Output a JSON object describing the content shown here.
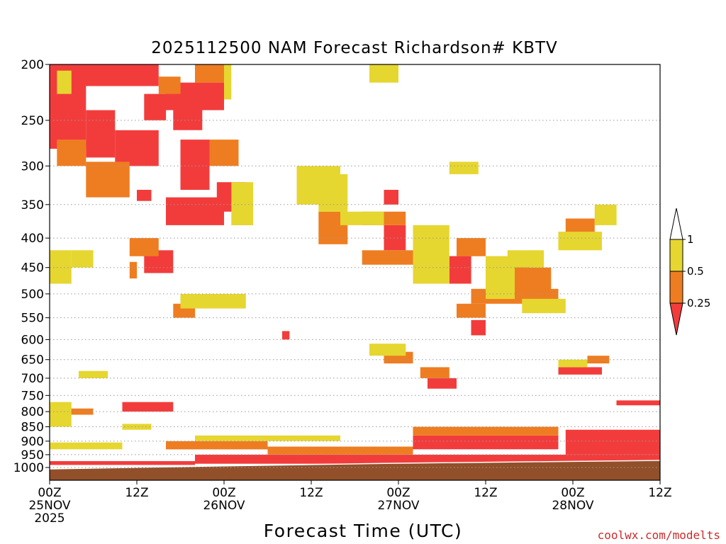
{
  "chart_data": {
    "type": "heatmap",
    "title": "2025112500 NAM Forecast Richardson# KBTV",
    "xlabel": "Forecast Time (UTC)",
    "ylabel": "",
    "y_axis": {
      "scale": "log-pressure",
      "range_hPa": [
        200,
        1000
      ],
      "ticks": [
        "200",
        "250",
        "300",
        "350",
        "400",
        "450",
        "500",
        "550",
        "600",
        "650",
        "700",
        "750",
        "800",
        "850",
        "900",
        "950",
        "1000"
      ],
      "grid": true
    },
    "x_axis": {
      "range_hours": [
        0,
        84
      ],
      "ticks": [
        {
          "hour": 0,
          "line1": "00Z",
          "line2": "25NOV",
          "line3": "2025"
        },
        {
          "hour": 12,
          "line1": "12Z",
          "line2": "",
          "line3": ""
        },
        {
          "hour": 24,
          "line1": "00Z",
          "line2": "26NOV",
          "line3": ""
        },
        {
          "hour": 36,
          "line1": "12Z",
          "line2": "",
          "line3": ""
        },
        {
          "hour": 48,
          "line1": "00Z",
          "line2": "27NOV",
          "line3": ""
        },
        {
          "hour": 60,
          "line1": "12Z",
          "line2": "",
          "line3": ""
        },
        {
          "hour": 72,
          "line1": "00Z",
          "line2": "28NOV",
          "line3": ""
        },
        {
          "hour": 84,
          "line1": "12Z",
          "line2": "",
          "line3": ""
        }
      ]
    },
    "colorbar": {
      "levels": [
        "1",
        "0.5",
        "0.25"
      ],
      "colors": {
        "lt_0_25": "#f23c3c",
        "0_25_to_0_5": "#ee7d21",
        "0_5_to_1": "#e6d630",
        "gt_1": "#ffffff"
      },
      "ground": "#91502a"
    },
    "regions": [
      {
        "bin": "lt_0_25",
        "t": [
          0,
          15
        ],
        "p": [
          200,
          218
        ]
      },
      {
        "bin": "lt_0_25",
        "t": [
          0,
          5
        ],
        "p": [
          218,
          280
        ]
      },
      {
        "bin": "lt_0_25",
        "t": [
          5,
          9
        ],
        "p": [
          240,
          290
        ]
      },
      {
        "bin": "lt_0_25",
        "t": [
          9,
          15
        ],
        "p": [
          260,
          300
        ]
      },
      {
        "bin": "lt_0_25",
        "t": [
          13,
          16
        ],
        "p": [
          225,
          250
        ]
      },
      {
        "bin": "lt_0_25",
        "t": [
          17,
          21
        ],
        "p": [
          235,
          260
        ]
      },
      {
        "bin": "lt_0_25",
        "t": [
          16,
          24
        ],
        "p": [
          340,
          380
        ]
      },
      {
        "bin": "lt_0_25",
        "t": [
          18,
          22
        ],
        "p": [
          270,
          330
        ]
      },
      {
        "bin": "lt_0_25",
        "t": [
          12,
          14
        ],
        "p": [
          330,
          345
        ]
      },
      {
        "bin": "lt_0_25",
        "t": [
          13,
          17
        ],
        "p": [
          420,
          460
        ]
      },
      {
        "bin": "lt_0_25",
        "t": [
          16,
          24
        ],
        "p": [
          215,
          240
        ]
      },
      {
        "bin": "lt_0_25",
        "t": [
          23,
          27
        ],
        "p": [
          320,
          360
        ]
      },
      {
        "bin": "lt_0_25",
        "t": [
          46,
          49
        ],
        "p": [
          380,
          420
        ]
      },
      {
        "bin": "lt_0_25",
        "t": [
          46,
          48
        ],
        "p": [
          330,
          350
        ]
      },
      {
        "bin": "lt_0_25",
        "t": [
          61,
          66
        ],
        "p": [
          440,
          490
        ]
      },
      {
        "bin": "lt_0_25",
        "t": [
          55,
          58
        ],
        "p": [
          430,
          480
        ]
      },
      {
        "bin": "lt_0_25",
        "t": [
          58,
          60
        ],
        "p": [
          555,
          590
        ]
      },
      {
        "bin": "lt_0_25",
        "t": [
          32,
          33
        ],
        "p": [
          580,
          600
        ]
      },
      {
        "bin": "lt_0_25",
        "t": [
          46,
          48
        ],
        "p": [
          615,
          630
        ]
      },
      {
        "bin": "lt_0_25",
        "t": [
          52,
          56
        ],
        "p": [
          700,
          730
        ]
      },
      {
        "bin": "lt_0_25",
        "t": [
          70,
          76
        ],
        "p": [
          670,
          690
        ]
      },
      {
        "bin": "lt_0_25",
        "t": [
          10,
          17
        ],
        "p": [
          770,
          800
        ]
      },
      {
        "bin": "lt_0_25",
        "t": [
          78,
          84
        ],
        "p": [
          765,
          780
        ]
      },
      {
        "bin": "lt_0_25",
        "t": [
          71,
          84
        ],
        "p": [
          860,
          950
        ]
      },
      {
        "bin": "lt_0_25",
        "t": [
          50,
          70
        ],
        "p": [
          880,
          930
        ]
      },
      {
        "bin": "lt_0_25",
        "t": [
          20,
          84
        ],
        "p": [
          950,
          985
        ]
      },
      {
        "bin": "lt_0_25",
        "t": [
          0,
          20
        ],
        "p": [
          975,
          990
        ]
      },
      {
        "bin": "0_25_to_0_5",
        "t": [
          1,
          5
        ],
        "p": [
          270,
          300
        ]
      },
      {
        "bin": "0_25_to_0_5",
        "t": [
          5,
          11
        ],
        "p": [
          295,
          340
        ]
      },
      {
        "bin": "0_25_to_0_5",
        "t": [
          15,
          18
        ],
        "p": [
          210,
          225
        ]
      },
      {
        "bin": "0_25_to_0_5",
        "t": [
          20,
          24
        ],
        "p": [
          200,
          215
        ]
      },
      {
        "bin": "0_25_to_0_5",
        "t": [
          22,
          26
        ],
        "p": [
          270,
          300
        ]
      },
      {
        "bin": "0_25_to_0_5",
        "t": [
          11,
          15
        ],
        "p": [
          400,
          430
        ]
      },
      {
        "bin": "0_25_to_0_5",
        "t": [
          11,
          12
        ],
        "p": [
          440,
          470
        ]
      },
      {
        "bin": "0_25_to_0_5",
        "t": [
          37,
          41
        ],
        "p": [
          360,
          410
        ]
      },
      {
        "bin": "0_25_to_0_5",
        "t": [
          43,
          49
        ],
        "p": [
          360,
          380
        ]
      },
      {
        "bin": "0_25_to_0_5",
        "t": [
          43,
          50
        ],
        "p": [
          420,
          445
        ]
      },
      {
        "bin": "0_25_to_0_5",
        "t": [
          56,
          60
        ],
        "p": [
          400,
          430
        ]
      },
      {
        "bin": "0_25_to_0_5",
        "t": [
          58,
          70
        ],
        "p": [
          490,
          520
        ]
      },
      {
        "bin": "0_25_to_0_5",
        "t": [
          62,
          69
        ],
        "p": [
          450,
          500
        ]
      },
      {
        "bin": "0_25_to_0_5",
        "t": [
          71,
          75
        ],
        "p": [
          370,
          400
        ]
      },
      {
        "bin": "0_25_to_0_5",
        "t": [
          56,
          60
        ],
        "p": [
          520,
          550
        ]
      },
      {
        "bin": "0_25_to_0_5",
        "t": [
          46,
          50
        ],
        "p": [
          630,
          660
        ]
      },
      {
        "bin": "0_25_to_0_5",
        "t": [
          51,
          55
        ],
        "p": [
          670,
          700
        ]
      },
      {
        "bin": "0_25_to_0_5",
        "t": [
          74,
          77
        ],
        "p": [
          640,
          660
        ]
      },
      {
        "bin": "0_25_to_0_5",
        "t": [
          17,
          20
        ],
        "p": [
          520,
          550
        ]
      },
      {
        "bin": "0_25_to_0_5",
        "t": [
          2,
          6
        ],
        "p": [
          790,
          810
        ]
      },
      {
        "bin": "0_25_to_0_5",
        "t": [
          16,
          30
        ],
        "p": [
          900,
          930
        ]
      },
      {
        "bin": "0_25_to_0_5",
        "t": [
          30,
          50
        ],
        "p": [
          920,
          950
        ]
      },
      {
        "bin": "0_25_to_0_5",
        "t": [
          50,
          70
        ],
        "p": [
          850,
          880
        ]
      },
      {
        "bin": "0_5_to_1",
        "t": [
          1,
          3
        ],
        "p": [
          205,
          225
        ]
      },
      {
        "bin": "0_5_to_1",
        "t": [
          24,
          25
        ],
        "p": [
          200,
          230
        ]
      },
      {
        "bin": "0_5_to_1",
        "t": [
          0,
          3
        ],
        "p": [
          420,
          480
        ]
      },
      {
        "bin": "0_5_to_1",
        "t": [
          3,
          6
        ],
        "p": [
          420,
          450
        ]
      },
      {
        "bin": "0_5_to_1",
        "t": [
          25,
          28
        ],
        "p": [
          320,
          380
        ]
      },
      {
        "bin": "0_5_to_1",
        "t": [
          34,
          40
        ],
        "p": [
          300,
          350
        ]
      },
      {
        "bin": "0_5_to_1",
        "t": [
          37,
          41
        ],
        "p": [
          310,
          360
        ]
      },
      {
        "bin": "0_5_to_1",
        "t": [
          40,
          46
        ],
        "p": [
          360,
          380
        ]
      },
      {
        "bin": "0_5_to_1",
        "t": [
          44,
          48
        ],
        "p": [
          200,
          215
        ]
      },
      {
        "bin": "0_5_to_1",
        "t": [
          55,
          59
        ],
        "p": [
          295,
          310
        ]
      },
      {
        "bin": "0_5_to_1",
        "t": [
          50,
          55
        ],
        "p": [
          380,
          480
        ]
      },
      {
        "bin": "0_5_to_1",
        "t": [
          60,
          64
        ],
        "p": [
          430,
          480
        ]
      },
      {
        "bin": "0_5_to_1",
        "t": [
          60,
          64
        ],
        "p": [
          450,
          510
        ]
      },
      {
        "bin": "0_5_to_1",
        "t": [
          63,
          68
        ],
        "p": [
          420,
          450
        ]
      },
      {
        "bin": "0_5_to_1",
        "t": [
          65,
          71
        ],
        "p": [
          510,
          540
        ]
      },
      {
        "bin": "0_5_to_1",
        "t": [
          70,
          76
        ],
        "p": [
          390,
          420
        ]
      },
      {
        "bin": "0_5_to_1",
        "t": [
          75,
          78
        ],
        "p": [
          350,
          380
        ]
      },
      {
        "bin": "0_5_to_1",
        "t": [
          44,
          49
        ],
        "p": [
          610,
          640
        ]
      },
      {
        "bin": "0_5_to_1",
        "t": [
          4,
          8
        ],
        "p": [
          680,
          700
        ]
      },
      {
        "bin": "0_5_to_1",
        "t": [
          0,
          3
        ],
        "p": [
          770,
          850
        ]
      },
      {
        "bin": "0_5_to_1",
        "t": [
          70,
          74
        ],
        "p": [
          650,
          670
        ]
      },
      {
        "bin": "0_5_to_1",
        "t": [
          0,
          10
        ],
        "p": [
          905,
          930
        ]
      },
      {
        "bin": "0_5_to_1",
        "t": [
          20,
          40
        ],
        "p": [
          880,
          900
        ]
      },
      {
        "bin": "0_5_to_1",
        "t": [
          18,
          27
        ],
        "p": [
          500,
          530
        ]
      },
      {
        "bin": "0_5_to_1",
        "t": [
          10,
          14
        ],
        "p": [
          840,
          860
        ]
      }
    ]
  },
  "credit": "coolwx.com/modelts"
}
